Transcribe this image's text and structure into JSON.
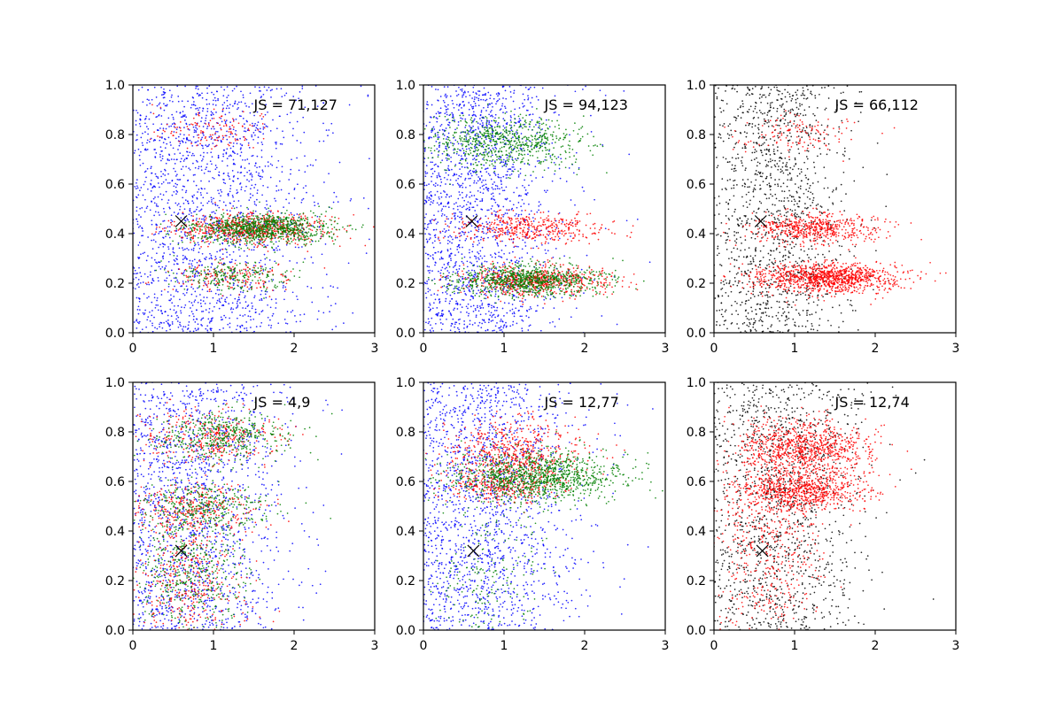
{
  "colors": {
    "blue": "#0000ff",
    "green": "#008000",
    "red": "#ff0000",
    "black": "#000000"
  },
  "chart_data": [
    {
      "type": "scatter",
      "panel": "top-left",
      "annotation": "JS = 71,127",
      "xlim": [
        0,
        3
      ],
      "ylim": [
        0,
        1
      ],
      "xticks": [
        "0",
        "1",
        "2",
        "3"
      ],
      "yticks": [
        "0.0",
        "0.2",
        "0.4",
        "0.6",
        "0.8",
        "1.0"
      ],
      "marker": {
        "x": 0.6,
        "y": 0.45
      },
      "series": [
        {
          "color": "blue",
          "clusters": [
            {
              "n": 1800,
              "x": 0.9,
              "xsd": 0.55,
              "y": 0.5,
              "ysd": 0.5,
              "spread": "wide"
            }
          ]
        },
        {
          "color": "red",
          "clusters": [
            {
              "n": 700,
              "x": 1.5,
              "xsd": 0.5,
              "y": 0.42,
              "ysd": 0.03
            },
            {
              "n": 180,
              "x": 1.2,
              "xsd": 0.4,
              "y": 0.23,
              "ysd": 0.03
            },
            {
              "n": 120,
              "x": 1.0,
              "xsd": 0.4,
              "y": 0.82,
              "ysd": 0.04
            }
          ]
        },
        {
          "color": "green",
          "clusters": [
            {
              "n": 900,
              "x": 1.6,
              "xsd": 0.45,
              "y": 0.42,
              "ysd": 0.03
            },
            {
              "n": 220,
              "x": 1.3,
              "xsd": 0.35,
              "y": 0.23,
              "ysd": 0.03
            }
          ]
        }
      ]
    },
    {
      "type": "scatter",
      "panel": "top-middle",
      "annotation": "JS = 94,123",
      "xlim": [
        0,
        3
      ],
      "ylim": [
        0,
        1
      ],
      "xticks": [
        "0",
        "1",
        "2",
        "3"
      ],
      "yticks": [
        "0.0",
        "0.2",
        "0.4",
        "0.6",
        "0.8",
        "1.0"
      ],
      "marker": {
        "x": 0.6,
        "y": 0.45
      },
      "series": [
        {
          "color": "blue",
          "clusters": [
            {
              "n": 1700,
              "x": 0.7,
              "xsd": 0.4,
              "y": 0.5,
              "ysd": 0.5,
              "spread": "wide"
            }
          ]
        },
        {
          "color": "red",
          "clusters": [
            {
              "n": 420,
              "x": 1.3,
              "xsd": 0.45,
              "y": 0.42,
              "ysd": 0.03
            },
            {
              "n": 650,
              "x": 1.4,
              "xsd": 0.45,
              "y": 0.21,
              "ysd": 0.03
            }
          ]
        },
        {
          "color": "green",
          "clusters": [
            {
              "n": 700,
              "x": 1.0,
              "xsd": 0.5,
              "y": 0.77,
              "ysd": 0.05
            },
            {
              "n": 850,
              "x": 1.3,
              "xsd": 0.45,
              "y": 0.21,
              "ysd": 0.03
            }
          ]
        }
      ]
    },
    {
      "type": "scatter",
      "panel": "top-right",
      "annotation": "JS = 66,112",
      "xlim": [
        0,
        3
      ],
      "ylim": [
        0,
        1
      ],
      "xticks": [
        "0",
        "1",
        "2",
        "3"
      ],
      "yticks": [
        "0.0",
        "0.2",
        "0.4",
        "0.6",
        "0.8",
        "1.0"
      ],
      "marker": {
        "x": 0.58,
        "y": 0.45
      },
      "series": [
        {
          "color": "black",
          "clusters": [
            {
              "n": 1300,
              "x": 0.75,
              "xsd": 0.35,
              "y": 0.5,
              "ysd": 0.5,
              "spread": "wide"
            }
          ]
        },
        {
          "color": "red",
          "clusters": [
            {
              "n": 550,
              "x": 1.25,
              "xsd": 0.4,
              "y": 0.42,
              "ysd": 0.03
            },
            {
              "n": 1100,
              "x": 1.4,
              "xsd": 0.45,
              "y": 0.22,
              "ysd": 0.03
            },
            {
              "n": 130,
              "x": 1.0,
              "xsd": 0.4,
              "y": 0.8,
              "ysd": 0.04
            }
          ]
        }
      ]
    },
    {
      "type": "scatter",
      "panel": "bottom-left",
      "annotation": "JS = 4,9",
      "xlim": [
        0,
        3
      ],
      "ylim": [
        0,
        1
      ],
      "xticks": [
        "0",
        "1",
        "2",
        "3"
      ],
      "yticks": [
        "0.0",
        "0.2",
        "0.4",
        "0.6",
        "0.8",
        "1.0"
      ],
      "marker": {
        "x": 0.6,
        "y": 0.32
      },
      "series": [
        {
          "color": "blue",
          "clusters": [
            {
              "n": 1500,
              "x": 0.75,
              "xsd": 0.45,
              "y": 0.5,
              "ysd": 0.5,
              "spread": "wide"
            }
          ]
        },
        {
          "color": "red",
          "clusters": [
            {
              "n": 350,
              "x": 1.0,
              "xsd": 0.45,
              "y": 0.78,
              "ysd": 0.05
            },
            {
              "n": 300,
              "x": 0.8,
              "xsd": 0.4,
              "y": 0.5,
              "ysd": 0.05
            },
            {
              "n": 400,
              "x": 0.7,
              "xsd": 0.35,
              "y": 0.2,
              "ysd": 0.12
            }
          ]
        },
        {
          "color": "green",
          "clusters": [
            {
              "n": 450,
              "x": 1.1,
              "xsd": 0.45,
              "y": 0.78,
              "ysd": 0.05
            },
            {
              "n": 350,
              "x": 0.9,
              "xsd": 0.4,
              "y": 0.5,
              "ysd": 0.05
            },
            {
              "n": 450,
              "x": 0.7,
              "xsd": 0.35,
              "y": 0.22,
              "ysd": 0.12
            }
          ]
        }
      ]
    },
    {
      "type": "scatter",
      "panel": "bottom-middle",
      "annotation": "JS = 12,77",
      "xlim": [
        0,
        3
      ],
      "ylim": [
        0,
        1
      ],
      "xticks": [
        "0",
        "1",
        "2",
        "3"
      ],
      "yticks": [
        "0.0",
        "0.2",
        "0.4",
        "0.6",
        "0.8",
        "1.0"
      ],
      "marker": {
        "x": 0.62,
        "y": 0.32
      },
      "series": [
        {
          "color": "blue",
          "clusters": [
            {
              "n": 1600,
              "x": 0.75,
              "xsd": 0.45,
              "y": 0.5,
              "ysd": 0.5,
              "spread": "wide"
            }
          ]
        },
        {
          "color": "red",
          "clusters": [
            {
              "n": 650,
              "x": 1.1,
              "xsd": 0.4,
              "y": 0.7,
              "ysd": 0.07
            },
            {
              "n": 250,
              "x": 1.0,
              "xsd": 0.35,
              "y": 0.57,
              "ysd": 0.03
            }
          ]
        },
        {
          "color": "green",
          "clusters": [
            {
              "n": 1100,
              "x": 1.4,
              "xsd": 0.5,
              "y": 0.62,
              "ysd": 0.05
            },
            {
              "n": 200,
              "x": 0.8,
              "xsd": 0.4,
              "y": 0.2,
              "ysd": 0.15
            }
          ]
        }
      ]
    },
    {
      "type": "scatter",
      "panel": "bottom-right",
      "annotation": "JS = 12,74",
      "xlim": [
        0,
        3
      ],
      "ylim": [
        0,
        1
      ],
      "xticks": [
        "0",
        "1",
        "2",
        "3"
      ],
      "yticks": [
        "0.0",
        "0.2",
        "0.4",
        "0.6",
        "0.8",
        "1.0"
      ],
      "marker": {
        "x": 0.6,
        "y": 0.32
      },
      "series": [
        {
          "color": "black",
          "clusters": [
            {
              "n": 1300,
              "x": 0.8,
              "xsd": 0.4,
              "y": 0.5,
              "ysd": 0.5,
              "spread": "wide"
            }
          ]
        },
        {
          "color": "red",
          "clusters": [
            {
              "n": 900,
              "x": 1.1,
              "xsd": 0.4,
              "y": 0.73,
              "ysd": 0.06
            },
            {
              "n": 700,
              "x": 1.1,
              "xsd": 0.4,
              "y": 0.56,
              "ysd": 0.04
            },
            {
              "n": 500,
              "x": 0.7,
              "xsd": 0.35,
              "y": 0.35,
              "ysd": 0.2
            }
          ]
        }
      ]
    }
  ]
}
